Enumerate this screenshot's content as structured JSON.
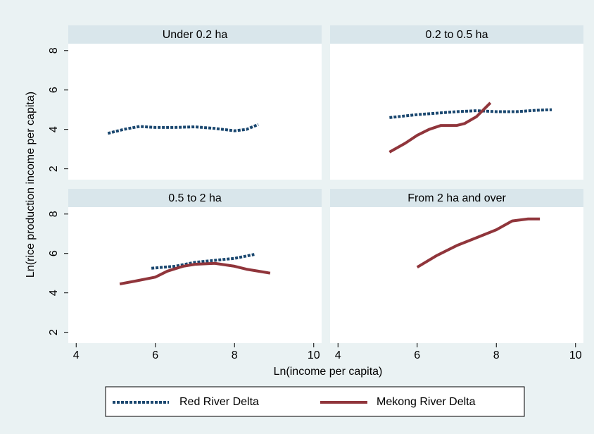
{
  "chart_data": {
    "type": "line",
    "x_label": "Ln(income per capita)",
    "y_label": "Ln(rice production income per capita)",
    "xlim": [
      3.8,
      10.2
    ],
    "xticks": [
      4,
      6,
      8,
      10
    ],
    "ylim": [
      1.45,
      8.35
    ],
    "yticks": [
      2,
      4,
      6,
      8
    ],
    "series": [
      {
        "name": "Red River Delta",
        "color": "#1a476f",
        "dash": true
      },
      {
        "name": "Mekong River Delta",
        "color": "#90353b",
        "dash": false
      }
    ],
    "panels": [
      {
        "title": "Under 0.2 ha",
        "lines": [
          {
            "x": [
              4.8,
              5.2,
              5.6,
              6.0,
              6.5,
              7.0,
              7.5,
              8.0,
              8.3,
              8.6
            ],
            "values": [
              3.8,
              4.0,
              4.15,
              4.1,
              4.1,
              4.13,
              4.05,
              3.93,
              4.0,
              4.25
            ]
          },
          null
        ]
      },
      {
        "title": "0.2 to 0.5 ha",
        "lines": [
          {
            "x": [
              5.3,
              6.0,
              7.0,
              7.5,
              8.0,
              8.5,
              9.0,
              9.4
            ],
            "values": [
              4.6,
              4.75,
              4.9,
              4.95,
              4.9,
              4.9,
              4.97,
              5.0
            ]
          },
          {
            "x": [
              5.3,
              5.7,
              6.0,
              6.3,
              6.6,
              7.0,
              7.2,
              7.5,
              7.85
            ],
            "values": [
              2.85,
              3.3,
              3.7,
              4.0,
              4.2,
              4.2,
              4.3,
              4.65,
              5.35
            ]
          }
        ]
      },
      {
        "title": "0.5 to 2 ha",
        "lines": [
          {
            "x": [
              5.9,
              6.5,
              7.0,
              7.5,
              8.0,
              8.5
            ],
            "values": [
              5.25,
              5.35,
              5.55,
              5.65,
              5.75,
              5.95
            ]
          },
          {
            "x": [
              5.1,
              5.5,
              6.0,
              6.3,
              6.7,
              7.0,
              7.5,
              8.0,
              8.3,
              8.6,
              8.9
            ],
            "values": [
              4.45,
              4.6,
              4.8,
              5.1,
              5.35,
              5.45,
              5.5,
              5.35,
              5.2,
              5.1,
              5.0
            ]
          }
        ]
      },
      {
        "title": "From 2 ha and over",
        "lines": [
          null,
          {
            "x": [
              6.0,
              6.5,
              7.0,
              7.5,
              8.0,
              8.4,
              8.8,
              9.1
            ],
            "values": [
              5.3,
              5.9,
              6.4,
              6.8,
              7.2,
              7.65,
              7.75,
              7.75
            ]
          }
        ]
      }
    ]
  }
}
